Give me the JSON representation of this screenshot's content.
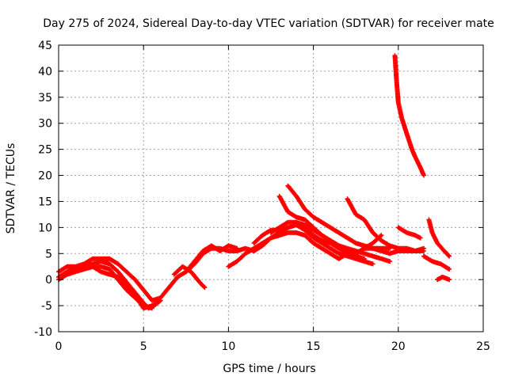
{
  "chart_data": {
    "type": "scatter",
    "title": "Day 275 of 2024, Sidereal Day-to-day VTEC variation (SDTVAR) for receiver mate",
    "xlabel": "GPS time / hours",
    "ylabel": "SDTVAR / TECUs",
    "xlim": [
      0,
      25
    ],
    "ylim": [
      -10,
      45
    ],
    "xticks": [
      0,
      5,
      10,
      15,
      20,
      25
    ],
    "yticks": [
      -10,
      -5,
      0,
      5,
      10,
      15,
      20,
      25,
      30,
      35,
      40,
      45
    ],
    "grid": true,
    "marker": "+",
    "color": "#ff0000",
    "series": [
      {
        "name": "track-1",
        "points": [
          [
            0,
            0.5
          ],
          [
            0.5,
            1.5
          ],
          [
            1,
            2
          ],
          [
            1.5,
            2.5
          ],
          [
            2,
            3
          ],
          [
            2.5,
            3.5
          ],
          [
            3,
            3
          ],
          [
            3.5,
            1.5
          ],
          [
            4,
            -0.5
          ],
          [
            4.5,
            -2.5
          ],
          [
            5,
            -4.5
          ],
          [
            5.3,
            -5.5
          ],
          [
            5.7,
            -4.8
          ],
          [
            6,
            -4
          ]
        ]
      },
      {
        "name": "track-2",
        "points": [
          [
            0,
            1.5
          ],
          [
            0.5,
            2.5
          ],
          [
            1,
            2.5
          ],
          [
            1.5,
            3
          ],
          [
            2,
            4
          ],
          [
            2.5,
            4
          ],
          [
            3,
            4
          ],
          [
            3.5,
            3
          ],
          [
            4,
            1.5
          ],
          [
            4.5,
            0
          ],
          [
            5,
            -2
          ],
          [
            5.5,
            -4
          ],
          [
            6,
            -3.5
          ],
          [
            6.5,
            -1.5
          ],
          [
            7,
            0.5
          ],
          [
            7.5,
            1.5
          ],
          [
            8,
            3
          ],
          [
            8.5,
            5
          ],
          [
            9,
            6
          ],
          [
            9.5,
            6
          ],
          [
            10,
            5.5
          ],
          [
            10.5,
            5.5
          ],
          [
            11,
            6
          ],
          [
            11.5,
            5.5
          ]
        ]
      },
      {
        "name": "track-3",
        "points": [
          [
            1.5,
            2
          ],
          [
            2,
            2.5
          ],
          [
            2.5,
            1.5
          ],
          [
            3,
            1
          ],
          [
            3.5,
            0.5
          ],
          [
            4,
            -1
          ],
          [
            4.5,
            -3
          ],
          [
            5,
            -5.5
          ],
          [
            5.5,
            -5
          ],
          [
            6,
            -4
          ]
        ]
      },
      {
        "name": "track-4",
        "points": [
          [
            0,
            0
          ],
          [
            0.5,
            1
          ],
          [
            1,
            1.5
          ],
          [
            1.5,
            2
          ],
          [
            2,
            2.5
          ],
          [
            2.5,
            2.5
          ],
          [
            3,
            2
          ],
          [
            3.5,
            0
          ],
          [
            4,
            -2
          ],
          [
            4.5,
            -3.5
          ],
          [
            5,
            -5
          ],
          [
            5.5,
            -5.5
          ]
        ]
      },
      {
        "name": "track-5",
        "points": [
          [
            6.8,
            1
          ],
          [
            7.3,
            2.5
          ],
          [
            7.8,
            1.5
          ],
          [
            8.3,
            -0.5
          ],
          [
            8.6,
            -1.5
          ]
        ]
      },
      {
        "name": "track-6",
        "points": [
          [
            7.5,
            1.5
          ],
          [
            8,
            3.5
          ],
          [
            8.5,
            5.5
          ],
          [
            9,
            6.5
          ],
          [
            9.5,
            5.5
          ],
          [
            10,
            6.5
          ],
          [
            10.5,
            6
          ]
        ]
      },
      {
        "name": "track-7",
        "points": [
          [
            10,
            2.5
          ],
          [
            10.5,
            3.5
          ],
          [
            11,
            5
          ],
          [
            11.5,
            6
          ],
          [
            12,
            7
          ],
          [
            12.5,
            8
          ],
          [
            13,
            9
          ],
          [
            13.5,
            10
          ],
          [
            14,
            10.5
          ],
          [
            14.5,
            9.5
          ],
          [
            15,
            8
          ],
          [
            15.5,
            7
          ],
          [
            16,
            6
          ],
          [
            16.5,
            5
          ],
          [
            17,
            4.5
          ],
          [
            17.5,
            4
          ],
          [
            18,
            3.5
          ],
          [
            18.5,
            3
          ]
        ]
      },
      {
        "name": "track-8",
        "points": [
          [
            11.5,
            5.5
          ],
          [
            12,
            6.5
          ],
          [
            12.5,
            8
          ],
          [
            13,
            8.5
          ],
          [
            13.5,
            9
          ],
          [
            14,
            9
          ],
          [
            14.5,
            8.5
          ],
          [
            15,
            7
          ],
          [
            15.5,
            6
          ],
          [
            16,
            5
          ],
          [
            16.5,
            4
          ],
          [
            17,
            5
          ],
          [
            17.5,
            4.5
          ],
          [
            18,
            4
          ]
        ]
      },
      {
        "name": "track-9",
        "points": [
          [
            11.5,
            7
          ],
          [
            12,
            8.5
          ],
          [
            12.5,
            9.5
          ],
          [
            13,
            9.5
          ],
          [
            13.5,
            10
          ],
          [
            14,
            10.5
          ],
          [
            14.5,
            10
          ],
          [
            15,
            8.5
          ],
          [
            15.5,
            7.5
          ],
          [
            16,
            7
          ],
          [
            16.5,
            6
          ],
          [
            17,
            5
          ],
          [
            17.5,
            5
          ],
          [
            18,
            6
          ],
          [
            18.5,
            6
          ],
          [
            19,
            5.5
          ],
          [
            19.5,
            5
          ],
          [
            20,
            5.5
          ],
          [
            20.5,
            5.5
          ],
          [
            21,
            5.5
          ],
          [
            21.5,
            5.5
          ]
        ]
      },
      {
        "name": "track-10",
        "points": [
          [
            12.5,
            9
          ],
          [
            13,
            10
          ],
          [
            13.5,
            11
          ],
          [
            14,
            11
          ],
          [
            14.5,
            10.5
          ],
          [
            15,
            9.5
          ],
          [
            15.5,
            8.5
          ],
          [
            16,
            7.5
          ],
          [
            16.5,
            6.5
          ],
          [
            17,
            6
          ],
          [
            17.5,
            5.5
          ],
          [
            18,
            5
          ],
          [
            18.5,
            4.5
          ],
          [
            19,
            4
          ],
          [
            19.5,
            3.5
          ]
        ]
      },
      {
        "name": "track-11",
        "points": [
          [
            13,
            16
          ],
          [
            13.5,
            13
          ],
          [
            14,
            12
          ],
          [
            14.5,
            11.5
          ],
          [
            15,
            10
          ],
          [
            15.5,
            8.5
          ],
          [
            16,
            7.5
          ],
          [
            16.5,
            6.5
          ],
          [
            17,
            5.5
          ],
          [
            17.5,
            5
          ],
          [
            18,
            6
          ],
          [
            18.5,
            7
          ],
          [
            19,
            8.5
          ]
        ]
      },
      {
        "name": "track-12",
        "points": [
          [
            13.5,
            18
          ],
          [
            14,
            16
          ],
          [
            14.5,
            13.5
          ],
          [
            15,
            12
          ],
          [
            15.5,
            11
          ],
          [
            16,
            10
          ],
          [
            16.5,
            9
          ],
          [
            17,
            8
          ],
          [
            17.5,
            7
          ],
          [
            18,
            6.5
          ],
          [
            18.5,
            6
          ],
          [
            19,
            6
          ],
          [
            19.5,
            6
          ]
        ]
      },
      {
        "name": "track-13",
        "points": [
          [
            17,
            15.5
          ],
          [
            17.5,
            12.5
          ],
          [
            18,
            11.5
          ],
          [
            18.5,
            9
          ],
          [
            19,
            7.5
          ],
          [
            19.5,
            6.5
          ],
          [
            20,
            6
          ],
          [
            20.5,
            6
          ],
          [
            21,
            5.5
          ],
          [
            21.5,
            6
          ]
        ]
      },
      {
        "name": "track-14",
        "points": [
          [
            19.8,
            43
          ],
          [
            19.9,
            38
          ],
          [
            20,
            34
          ],
          [
            20.2,
            31
          ],
          [
            20.5,
            28
          ],
          [
            20.8,
            25
          ],
          [
            21,
            23.5
          ],
          [
            21.3,
            21.5
          ],
          [
            21.5,
            20
          ]
        ]
      },
      {
        "name": "track-15",
        "points": [
          [
            20,
            10
          ],
          [
            20.5,
            9
          ],
          [
            21,
            8.5
          ],
          [
            21.3,
            8
          ]
        ]
      },
      {
        "name": "track-16",
        "points": [
          [
            21.5,
            4.5
          ],
          [
            22,
            3.5
          ],
          [
            22.5,
            3
          ],
          [
            23,
            2
          ]
        ]
      },
      {
        "name": "track-17",
        "points": [
          [
            21.8,
            11.5
          ],
          [
            22,
            9
          ],
          [
            22.3,
            7
          ],
          [
            22.7,
            5.5
          ],
          [
            23,
            4.5
          ]
        ]
      },
      {
        "name": "track-18",
        "points": [
          [
            22.3,
            0
          ],
          [
            22.6,
            0.5
          ],
          [
            23,
            0
          ]
        ]
      }
    ]
  }
}
